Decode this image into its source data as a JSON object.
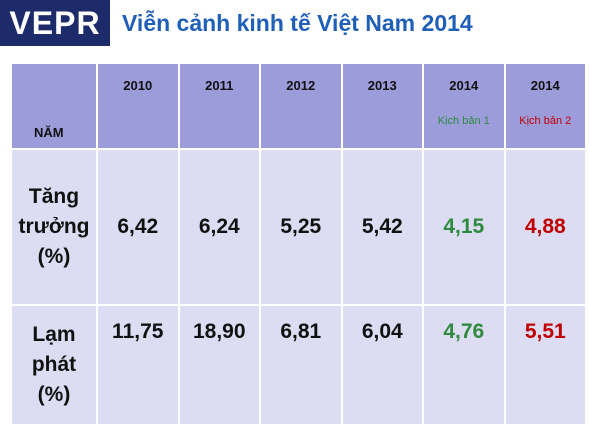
{
  "header": {
    "logo": "VEPR",
    "title": "Viễn cảnh kinh tế Việt Nam 2014"
  },
  "table": {
    "corner": "NĂM",
    "columns": [
      {
        "year": "2010"
      },
      {
        "year": "2011"
      },
      {
        "year": "2012"
      },
      {
        "year": "2013"
      },
      {
        "year": "2014",
        "scenario": "Kịch bản 1"
      },
      {
        "year": "2014",
        "scenario": "Kịch bản 2"
      }
    ],
    "rows": [
      {
        "label": [
          "Tăng",
          "trưởng",
          "(%)"
        ],
        "values": [
          "6,42",
          "6,24",
          "5,25",
          "5,42",
          "4,15",
          "4,88"
        ]
      },
      {
        "label": [
          "Lạm",
          "phát",
          "(%)"
        ],
        "values": [
          "11,75",
          "18,90",
          "6,81",
          "6,04",
          "4,76",
          "5,51"
        ]
      }
    ]
  }
}
